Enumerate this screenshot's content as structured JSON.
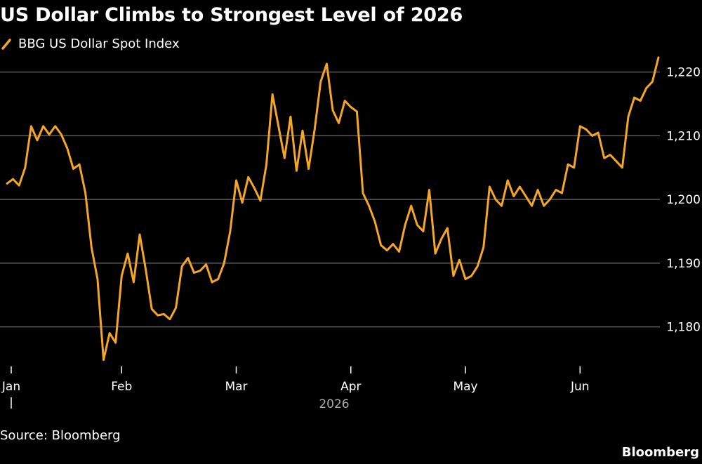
{
  "title": "US Dollar Climbs to Strongest Level of 2026",
  "source": "Source: Bloomberg",
  "brand": "Bloomberg",
  "colors": {
    "line": "#f5a623",
    "grid": "#5a5a5a",
    "background": "#000000"
  },
  "chart_data": {
    "type": "line",
    "title": "US Dollar Climbs to Strongest Level of 2026",
    "xlabel": "2026",
    "ylabel": "",
    "ylim": [
      1174,
      1222.5
    ],
    "y_ticks": [
      1180,
      1190,
      1200,
      1210,
      1220
    ],
    "y_tick_labels": [
      "1,180",
      "1,190",
      "1,200",
      "1,210",
      "1,220"
    ],
    "x_ticks": [
      "Jan",
      "Feb",
      "Mar",
      "Apr",
      "May",
      "Jun"
    ],
    "year_label": "2026",
    "grid": true,
    "legend_placement": "top-left",
    "series": [
      {
        "name": "BBG US Dollar Spot Index",
        "values": [
          1202.5,
          1203.2,
          1202.2,
          1205.0,
          1211.5,
          1209.3,
          1211.5,
          1210.2,
          1211.5,
          1210.2,
          1208.0,
          1204.8,
          1205.5,
          1201.0,
          1192.5,
          1187.5,
          1174.8,
          1179.0,
          1177.5,
          1188.0,
          1191.5,
          1187.0,
          1194.5,
          1189.0,
          1182.8,
          1181.8,
          1182.0,
          1181.2,
          1183.0,
          1189.5,
          1190.8,
          1188.5,
          1188.8,
          1189.8,
          1187.0,
          1187.5,
          1190.0,
          1195.0,
          1203.0,
          1199.5,
          1203.5,
          1201.8,
          1199.8,
          1205.5,
          1216.5,
          1211.5,
          1206.5,
          1213.0,
          1204.5,
          1210.8,
          1204.8,
          1211.0,
          1218.5,
          1221.3,
          1214.0,
          1212.0,
          1215.5,
          1214.5,
          1213.8,
          1201.0,
          1199.0,
          1196.5,
          1192.8,
          1192.0,
          1193.0,
          1191.8,
          1196.0,
          1199.0,
          1196.0,
          1195.0,
          1201.5,
          1191.5,
          1193.8,
          1195.5,
          1188.0,
          1190.5,
          1187.5,
          1188.0,
          1189.5,
          1192.5,
          1202.0,
          1200.0,
          1199.0,
          1203.0,
          1200.5,
          1202.0,
          1200.5,
          1199.0,
          1201.5,
          1199.0,
          1200.0,
          1201.5,
          1201.0,
          1205.5,
          1205.0,
          1211.5,
          1211.0,
          1210.0,
          1210.5,
          1206.5,
          1207.0,
          1206.0,
          1205.0,
          1213.0,
          1216.0,
          1215.5,
          1217.5,
          1218.5,
          1222.3
        ]
      }
    ]
  }
}
